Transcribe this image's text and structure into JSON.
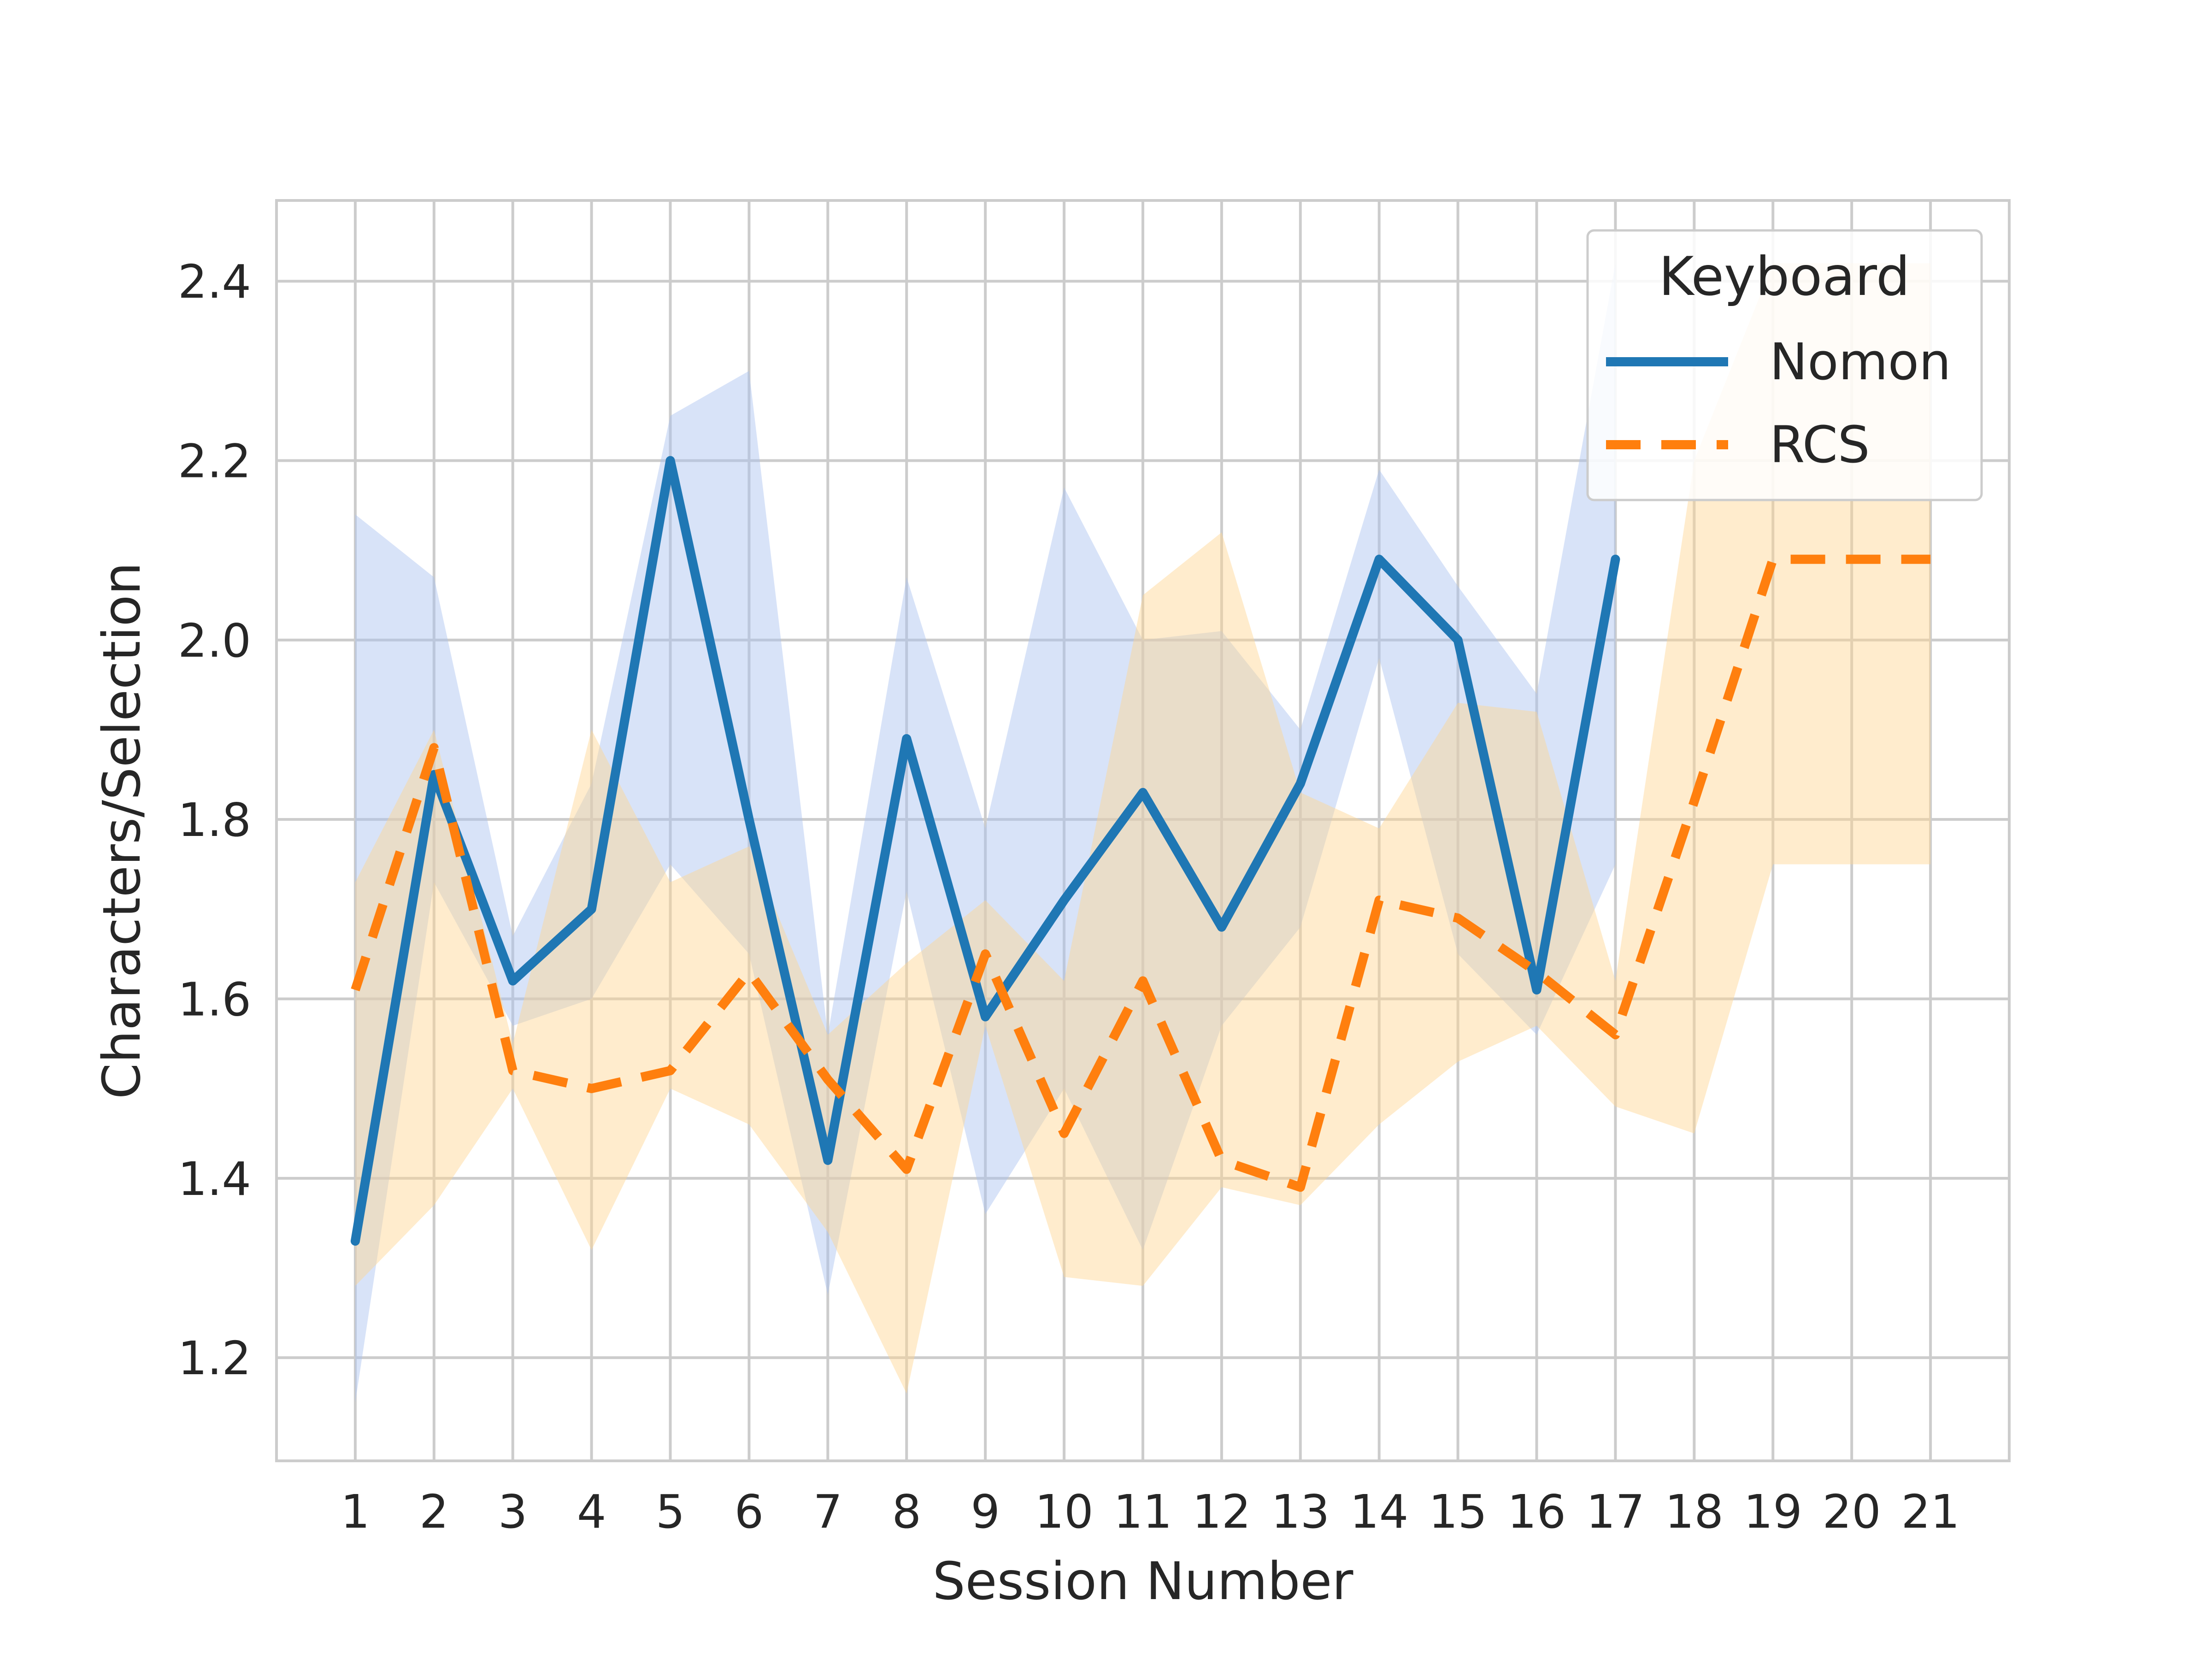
{
  "chart_data": {
    "type": "line",
    "xlabel": "Session Number",
    "ylabel": "Characters/Selection",
    "xlim": [
      0,
      22
    ],
    "ylim": [
      1.085,
      2.49
    ],
    "yticks": [
      1.2,
      1.4,
      1.6,
      1.8,
      2.0,
      2.2,
      2.4
    ],
    "ytick_labels": [
      "1.2",
      "1.4",
      "1.6",
      "1.8",
      "2.0",
      "2.2",
      "2.4"
    ],
    "x": [
      1,
      2,
      3,
      4,
      5,
      6,
      7,
      8,
      9,
      10,
      11,
      12,
      13,
      14,
      15,
      16,
      17,
      18,
      19,
      20,
      21
    ],
    "xtick_labels": [
      "1",
      "2",
      "3",
      "4",
      "5",
      "6",
      "7",
      "8",
      "9",
      "10",
      "11",
      "12",
      "13",
      "14",
      "15",
      "16",
      "17",
      "18",
      "19",
      "20",
      "21"
    ],
    "grid": true,
    "legend": {
      "title": "Keyboard",
      "placement": "top-right"
    },
    "series": [
      {
        "name": "Nomon",
        "style": "solid",
        "color": "#1f77b4",
        "band_color": "#a8c2f0",
        "x": [
          1,
          2,
          3,
          4,
          5,
          6,
          7,
          8,
          9,
          10,
          11,
          12,
          13,
          14,
          15,
          16,
          17
        ],
        "values": [
          1.33,
          1.85,
          1.62,
          1.7,
          2.2,
          1.8,
          1.42,
          1.89,
          1.58,
          1.71,
          1.83,
          1.68,
          1.84,
          2.09,
          2.0,
          1.61,
          2.09
        ],
        "lower": [
          1.15,
          1.73,
          1.57,
          1.6,
          1.75,
          1.65,
          1.27,
          1.72,
          1.36,
          1.5,
          1.32,
          1.57,
          1.68,
          1.98,
          1.65,
          1.56,
          1.75
        ],
        "upper": [
          2.14,
          2.07,
          1.67,
          1.84,
          2.25,
          2.3,
          1.56,
          2.07,
          1.79,
          2.17,
          2.0,
          2.01,
          1.9,
          2.19,
          2.06,
          1.94,
          2.42
        ]
      },
      {
        "name": "RCS",
        "style": "dashed",
        "color": "#ff7f0e",
        "band_color": "#ffd590",
        "x": [
          1,
          2,
          3,
          4,
          5,
          6,
          7,
          8,
          9,
          10,
          11,
          12,
          13,
          14,
          15,
          16,
          17,
          18,
          19,
          20,
          21
        ],
        "values": [
          1.61,
          1.88,
          1.52,
          1.5,
          1.52,
          1.63,
          1.51,
          1.41,
          1.65,
          1.45,
          1.62,
          1.42,
          1.39,
          1.71,
          1.69,
          1.63,
          1.56,
          1.82,
          2.09,
          2.09,
          2.09
        ],
        "lower": [
          1.28,
          1.37,
          1.5,
          1.32,
          1.5,
          1.46,
          1.34,
          1.16,
          1.57,
          1.29,
          1.28,
          1.39,
          1.37,
          1.46,
          1.53,
          1.57,
          1.48,
          1.45,
          1.75,
          1.75,
          1.75
        ],
        "upper": [
          1.73,
          1.9,
          1.55,
          1.9,
          1.73,
          1.77,
          1.56,
          1.64,
          1.71,
          1.62,
          2.05,
          2.12,
          1.83,
          1.79,
          1.93,
          1.92,
          1.62,
          2.2,
          2.42,
          2.42,
          2.42
        ]
      }
    ]
  }
}
